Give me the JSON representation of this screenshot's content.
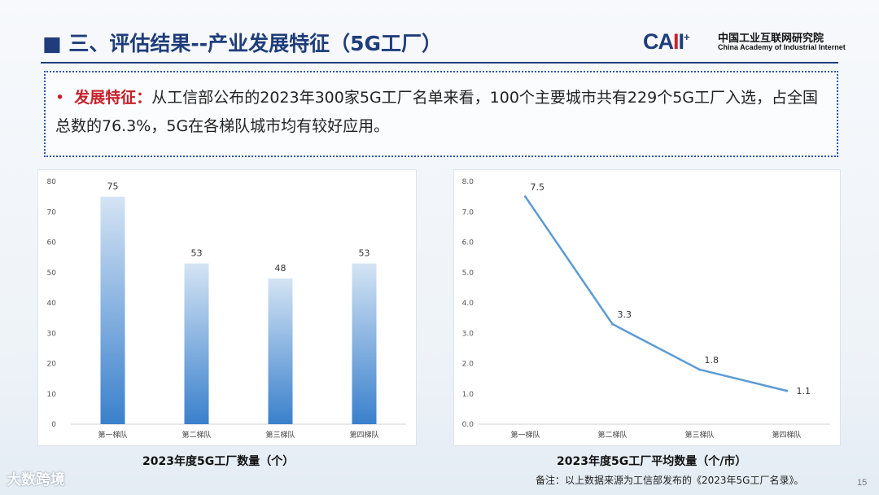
{
  "header": {
    "title_marker": "■",
    "title": "三、评估结果--产业发展特征（5G工厂）"
  },
  "logo": {
    "mark_left": "CA",
    "mark_red": "I",
    "mark_right": "I",
    "mark_plus": "+",
    "cn": "中国工业互联网研究院",
    "en": "China Academy of Industrial Internet",
    "colors": {
      "blue": "#1f3d7a",
      "red": "#c8202a"
    }
  },
  "feature": {
    "bullet": "•",
    "label": "发展特征：",
    "text": "从工信部公布的2023年300家5G工厂名单来看，100个主要城市共有229个5G工厂入选，占全国总数的76.3%，5G在各梯队城市均有较好应用。"
  },
  "chart_data": [
    {
      "type": "bar",
      "title": "2023年度5G工厂数量（个）",
      "categories": [
        "第一梯队",
        "第二梯队",
        "第三梯队",
        "第四梯队"
      ],
      "values": [
        75,
        53,
        48,
        53
      ],
      "value_labels": [
        "75",
        "53",
        "48",
        "53"
      ],
      "ylim": [
        0,
        80
      ],
      "yticks": [
        "0",
        "10",
        "20",
        "30",
        "40",
        "50",
        "60",
        "70",
        "80"
      ],
      "ytick_values": [
        0,
        10,
        20,
        30,
        40,
        50,
        60,
        70,
        80
      ],
      "grid": false,
      "legend": "none",
      "color_top": "#d4e4f4",
      "color_bottom": "#3a80cc"
    },
    {
      "type": "line",
      "title": "2023年度5G工厂平均数量（个/市）",
      "categories": [
        "第一梯队",
        "第二梯队",
        "第三梯队",
        "第四梯队"
      ],
      "values": [
        7.5,
        3.3,
        1.8,
        1.1
      ],
      "value_labels": [
        "7.5",
        "3.3",
        "1.8",
        "1.1"
      ],
      "ylim": [
        0,
        8
      ],
      "yticks": [
        "0.0",
        "1.0",
        "2.0",
        "3.0",
        "4.0",
        "5.0",
        "6.0",
        "7.0",
        "8.0"
      ],
      "ytick_values": [
        0,
        1,
        2,
        3,
        4,
        5,
        6,
        7,
        8
      ],
      "grid": false,
      "legend": "none",
      "color": "#5b9bd5"
    }
  ],
  "footer": {
    "note": "备注：以上数据来源为工信部发布的《2023年5G工厂名录》。",
    "page_number": "15",
    "brand": "大数跨境"
  }
}
